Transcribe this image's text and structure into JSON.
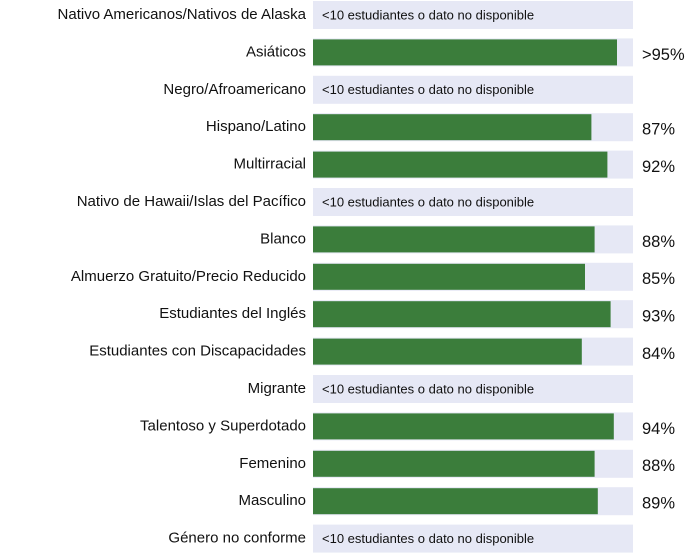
{
  "chart_data": {
    "type": "hbar",
    "categories": [
      "Nativo Americanos/Nativos de Alaska",
      "Asiáticos",
      "Negro/Afroamericano",
      "Hispano/Latino",
      "Multirracial",
      "Nativo de Hawaii/Islas del Pacífico",
      "Blanco",
      "Almuerzo Gratuito/Precio Reducido",
      "Estudiantes del Inglés",
      "Estudiantes con Discapacidades",
      "Migrante",
      "Talentoso y Superdotado",
      "Femenino",
      "Masculino",
      "Género no conforme"
    ],
    "values": [
      null,
      95,
      null,
      87,
      92,
      null,
      88,
      85,
      93,
      84,
      null,
      94,
      88,
      89,
      null
    ],
    "value_labels": [
      "<10 estudiantes o dato no disponible",
      ">95%",
      "<10 estudiantes o dato no disponible",
      "87%",
      "92%",
      "<10 estudiantes o dato no disponible",
      "88%",
      "85%",
      "93%",
      "84%",
      "<10 estudiantes o dato no disponible",
      "94%",
      "88%",
      "89%",
      "<10 estudiantes o dato no disponible"
    ],
    "color": "#3b7d3b",
    "track_color": "#e6e8f5",
    "xlim": [
      0,
      100
    ]
  }
}
